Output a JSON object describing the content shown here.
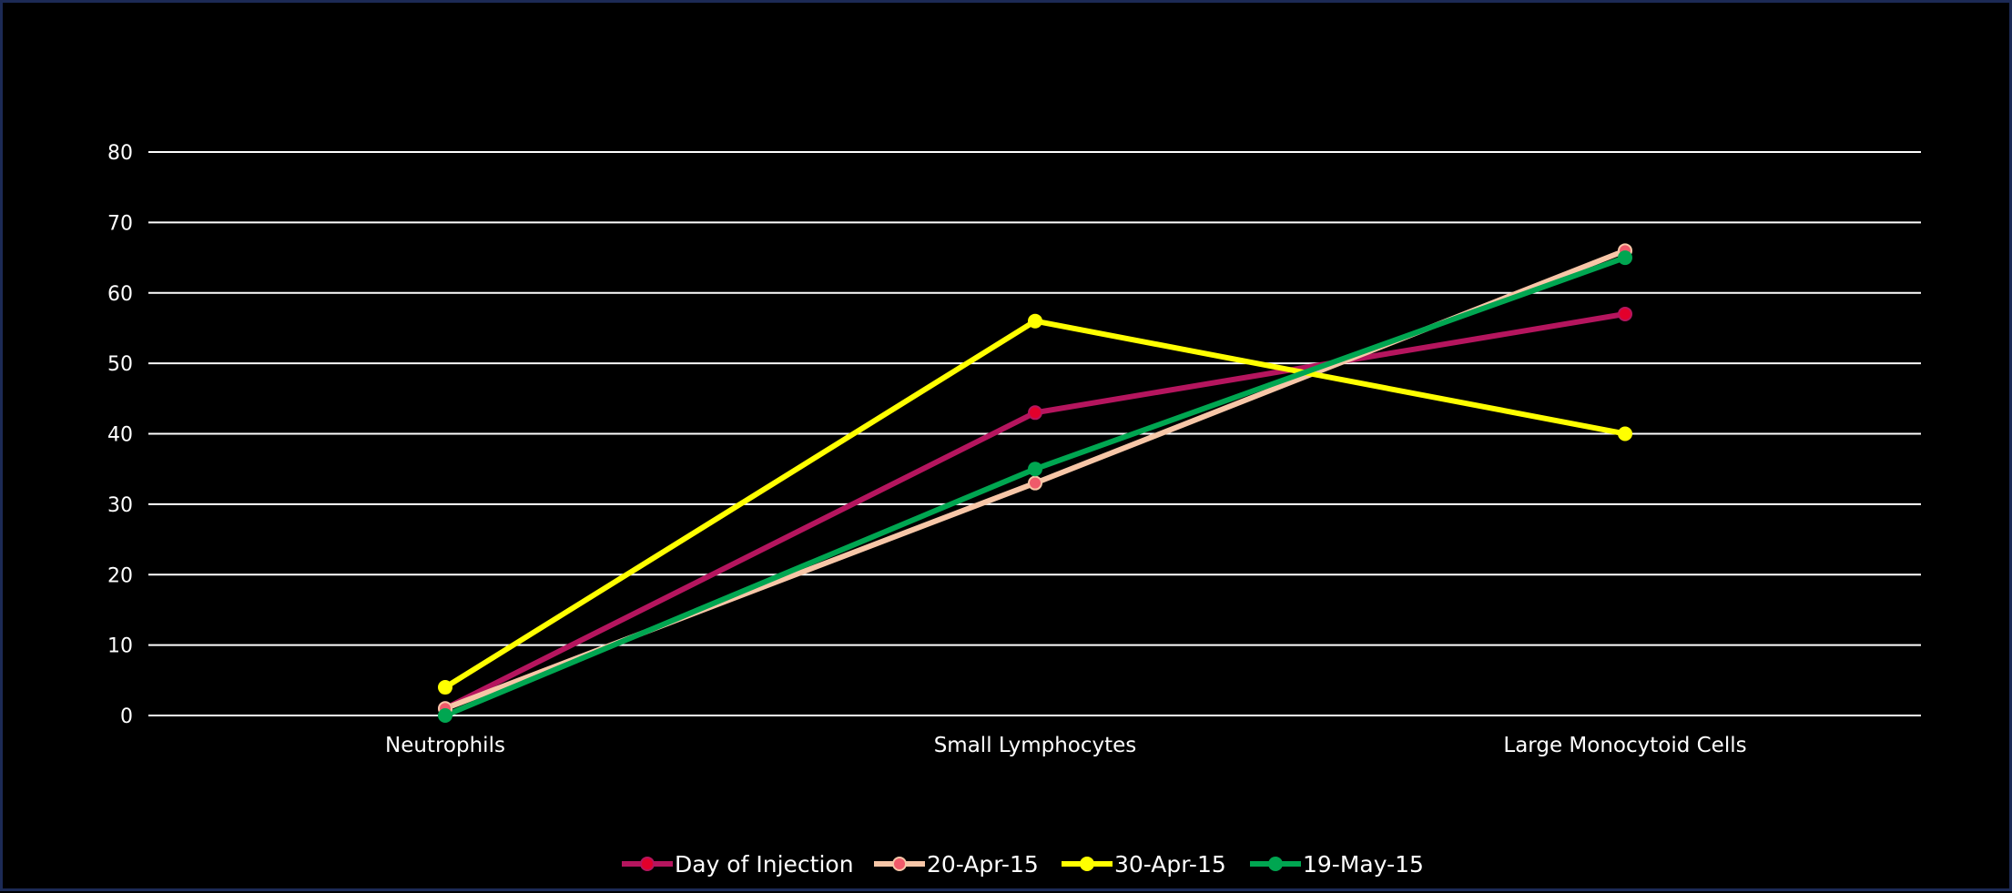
{
  "chart_data": {
    "type": "line",
    "title": "",
    "xlabel": "",
    "ylabel": "",
    "categories": [
      "Neutrophils",
      "Small Lymphocytes",
      "Large Monocytoid Cells"
    ],
    "ylim": [
      0,
      80
    ],
    "yticks": [
      0,
      10,
      20,
      30,
      40,
      50,
      60,
      70,
      80
    ],
    "grid": true,
    "legend_position": "bottom",
    "series": [
      {
        "name": "Day of Injection",
        "values": [
          1,
          43,
          57
        ],
        "line_color": "#b5155e",
        "marker_color": "#e3002b"
      },
      {
        "name": "20-Apr-15",
        "values": [
          1,
          33,
          66
        ],
        "line_color": "#f7c6a7",
        "marker_color": "#ef5a6a"
      },
      {
        "name": "30-Apr-15",
        "values": [
          4,
          56,
          40
        ],
        "line_color": "#ffff00",
        "marker_color": "#ffff00"
      },
      {
        "name": "19-May-15",
        "values": [
          0,
          35,
          65
        ],
        "line_color": "#00a651",
        "marker_color": "#00a651"
      }
    ]
  },
  "colors": {
    "background": "#000000",
    "gridline": "#ffffff",
    "text": "#ffffff"
  }
}
